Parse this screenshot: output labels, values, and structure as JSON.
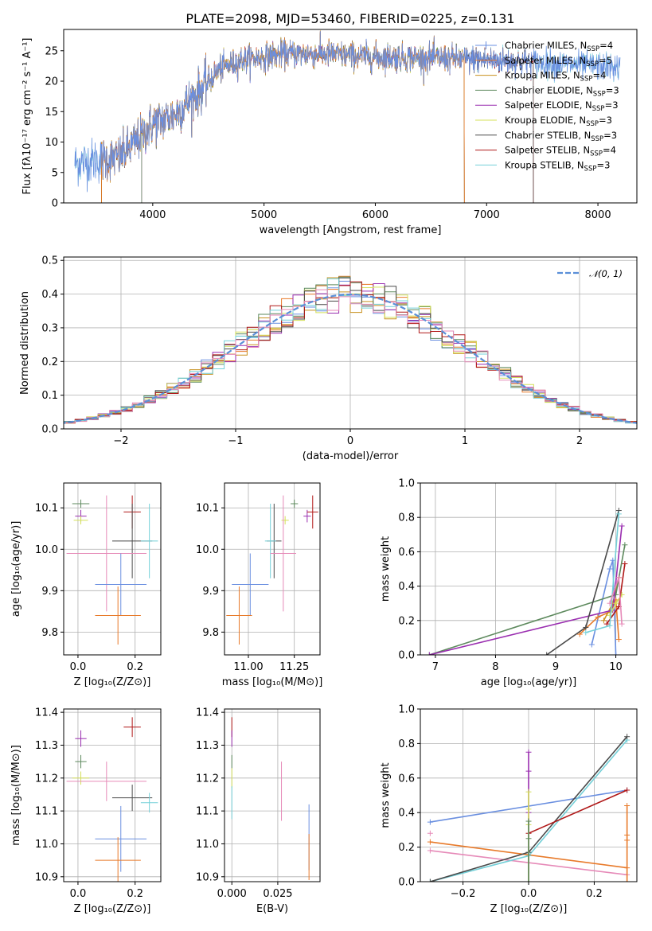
{
  "colors": {
    "chabrier_miles": "#6a8fe0",
    "salpeter_miles": "#e87a2a",
    "kroupa_miles": "#c8901e",
    "chabrier_elodie": "#5e8a5e",
    "salpeter_elodie": "#9a2eb0",
    "kroupa_elodie": "#d4e05a",
    "chabrier_stelib": "#4a4a4a",
    "salpeter_stelib": "#b01818",
    "kroupa_stelib": "#74d0d8",
    "pink": "#e68ab8",
    "gaussian": "#5a8fd8"
  },
  "chart_data": [
    {
      "id": "spectrum",
      "type": "line",
      "title": "PLATE=2098, MJD=53460, FIBERID=0225, z=0.131",
      "xlabel": "wavelength [Angstrom, rest frame]",
      "ylabel": "Flux [fλ10⁻¹⁷ erg cm⁻² s⁻¹ A⁻¹]",
      "xlim": [
        3200,
        8350
      ],
      "ylim": [
        0,
        28.5
      ],
      "xticks": [
        4000,
        5000,
        6000,
        7000,
        8000
      ],
      "yticks": [
        0,
        5,
        10,
        15,
        20,
        25
      ],
      "legend_position": "upper right",
      "grid": false,
      "continuum_points": [
        [
          3300,
          6.5
        ],
        [
          3500,
          7.0
        ],
        [
          3700,
          7.5
        ],
        [
          3850,
          10.0
        ],
        [
          4000,
          13.0
        ],
        [
          4200,
          14.5
        ],
        [
          4400,
          18.0
        ],
        [
          4600,
          22.0
        ],
        [
          4800,
          23.5
        ],
        [
          5000,
          24.0
        ],
        [
          5200,
          24.5
        ],
        [
          5500,
          24.5
        ],
        [
          6000,
          24.0
        ],
        [
          6500,
          23.8
        ],
        [
          7000,
          23.5
        ],
        [
          7500,
          23.0
        ],
        [
          8000,
          22.5
        ],
        [
          8200,
          22.2
        ]
      ],
      "series": [
        {
          "name": "Chabrier MILES, N<sub>SSP</sub>=4",
          "label_main": "Chabrier MILES, N",
          "label_sub": "SSP",
          "label_end": "=4",
          "color_key": "chabrier_miles",
          "marker": "+",
          "xmin": 3300,
          "xmax": 8200
        },
        {
          "name": "Salpeter MILES, N<sub>SSP</sub>=5",
          "label_main": "Salpeter MILES, N",
          "label_sub": "SSP",
          "label_end": "=5",
          "color_key": "salpeter_miles",
          "xmin": 3540,
          "xmax": 6800
        },
        {
          "name": "Kroupa MILES, N<sub>SSP</sub>=4",
          "label_main": "Kroupa MILES, N",
          "label_sub": "SSP",
          "label_end": "=4",
          "color_key": "kroupa_miles",
          "xmin": 3540,
          "xmax": 6800
        },
        {
          "name": "Chabrier ELODIE, N<sub>SSP</sub>=3",
          "label_main": "Chabrier ELODIE, N",
          "label_sub": "SSP",
          "label_end": "=3",
          "color_key": "chabrier_elodie",
          "xmin": 3900,
          "xmax": 6800
        },
        {
          "name": "Salpeter ELODIE, N<sub>SSP</sub>=3",
          "label_main": "Salpeter ELODIE, N",
          "label_sub": "SSP",
          "label_end": "=3",
          "color_key": "salpeter_elodie",
          "xmin": 3900,
          "xmax": 6800
        },
        {
          "name": "Kroupa ELODIE, N<sub>SSP</sub>=3",
          "label_main": "Kroupa ELODIE, N",
          "label_sub": "SSP",
          "label_end": "=3",
          "color_key": "kroupa_elodie",
          "xmin": 3900,
          "xmax": 6800
        },
        {
          "name": "Chabrier STELIB, N<sub>SSP</sub>=3",
          "label_main": "Chabrier STELIB, N",
          "label_sub": "SSP",
          "label_end": "=3",
          "color_key": "chabrier_stelib",
          "xmin": 3540,
          "xmax": 7420
        },
        {
          "name": "Salpeter STELIB, N<sub>SSP</sub>=4",
          "label_main": "Salpeter STELIB, N",
          "label_sub": "SSP",
          "label_end": "=4",
          "color_key": "salpeter_stelib",
          "xmin": 3540,
          "xmax": 7420
        },
        {
          "name": "Kroupa STELIB, N<sub>SSP</sub>=3",
          "label_main": "Kroupa STELIB, N",
          "label_sub": "SSP",
          "label_end": "=3",
          "color_key": "kroupa_stelib",
          "xmin": 3300,
          "xmax": 8200
        }
      ]
    },
    {
      "id": "residuals",
      "type": "bar",
      "xlabel": "(data-model)/error",
      "ylabel": "Normed distribution",
      "xlim": [
        -2.5,
        2.5
      ],
      "ylim": [
        0,
        0.51
      ],
      "xticks": [
        -2,
        -1,
        0,
        1,
        2
      ],
      "yticks": [
        0.0,
        0.1,
        0.2,
        0.3,
        0.4,
        0.5
      ],
      "grid": true,
      "legend_position": "upper right",
      "gaussian_label": "𝒩(0, 1)",
      "bin_width": 0.1
    },
    {
      "id": "age_vs_Z",
      "type": "scatter",
      "xlabel": "Z [log₁₀(Z/Z⊙)]",
      "ylabel": "age  [log₁₀(age/yr)]",
      "xlim": [
        -0.05,
        0.29
      ],
      "ylim": [
        9.745,
        10.16
      ],
      "xticks": [
        0.0,
        0.2
      ],
      "yticks": [
        9.8,
        9.9,
        10.0,
        10.1
      ],
      "grid": true,
      "points": [
        {
          "color_key": "chabrier_elodie",
          "x": 0.01,
          "xerr": 0.03,
          "y": 10.11,
          "yerr": 0.01
        },
        {
          "color_key": "salpeter_elodie",
          "x": 0.01,
          "xerr": 0.02,
          "y": 10.08,
          "yerr": 0.015
        },
        {
          "color_key": "kroupa_elodie",
          "x": 0.01,
          "xerr": 0.025,
          "y": 10.07,
          "yerr": 0.01
        },
        {
          "color_key": "salpeter_stelib",
          "x": 0.19,
          "xerr": 0.03,
          "y": 10.09,
          "yerr": 0.04
        },
        {
          "color_key": "chabrier_stelib",
          "x": 0.19,
          "xerr": 0.07,
          "y": 10.02,
          "yerr": 0.09
        },
        {
          "color_key": "kroupa_stelib",
          "x": 0.25,
          "xerr": 0.03,
          "y": 10.02,
          "yerr": 0.09
        },
        {
          "color_key": "pink",
          "x": 0.1,
          "xerr": 0.14,
          "y": 9.99,
          "yerr": 0.14
        },
        {
          "color_key": "chabrier_miles",
          "x": 0.15,
          "xerr": 0.09,
          "y": 9.915,
          "yerr": 0.075
        },
        {
          "color_key": "salpeter_miles",
          "x": 0.14,
          "xerr": 0.08,
          "y": 9.84,
          "yerr": 0.07
        }
      ]
    },
    {
      "id": "age_vs_mass",
      "type": "scatter",
      "xlabel": "mass [log₁₀(M/M⊙)]",
      "ylabel": "",
      "xlim": [
        10.87,
        11.39
      ],
      "ylim": [
        9.745,
        10.16
      ],
      "xticks": [
        11.0,
        11.25
      ],
      "xtick_labels": [
        "11.00",
        "11.25"
      ],
      "yticks": [
        9.8,
        9.9,
        10.0,
        10.1
      ],
      "grid": true,
      "points": [
        {
          "color_key": "chabrier_elodie",
          "x": 11.25,
          "xerr": 0.02,
          "y": 10.11,
          "yerr": 0.01
        },
        {
          "color_key": "salpeter_elodie",
          "x": 11.32,
          "xerr": 0.02,
          "y": 10.08,
          "yerr": 0.015
        },
        {
          "color_key": "kroupa_elodie",
          "x": 11.2,
          "xerr": 0.02,
          "y": 10.07,
          "yerr": 0.01
        },
        {
          "color_key": "salpeter_stelib",
          "x": 11.35,
          "xerr": 0.03,
          "y": 10.09,
          "yerr": 0.04
        },
        {
          "color_key": "chabrier_stelib",
          "x": 11.14,
          "xerr": 0.04,
          "y": 10.02,
          "yerr": 0.09
        },
        {
          "color_key": "kroupa_stelib",
          "x": 11.12,
          "xerr": 0.03,
          "y": 10.02,
          "yerr": 0.09
        },
        {
          "color_key": "pink",
          "x": 11.19,
          "xerr": 0.07,
          "y": 9.99,
          "yerr": 0.14
        },
        {
          "color_key": "chabrier_miles",
          "x": 11.01,
          "xerr": 0.1,
          "y": 9.915,
          "yerr": 0.075
        },
        {
          "color_key": "salpeter_miles",
          "x": 10.95,
          "xerr": 0.07,
          "y": 9.84,
          "yerr": 0.07
        }
      ]
    },
    {
      "id": "weight_vs_age",
      "type": "line",
      "xlabel": "age  [log₁₀(age/yr)]",
      "ylabel": "mass weight",
      "xlim": [
        6.75,
        10.35
      ],
      "ylim": [
        0,
        1.0
      ],
      "xticks": [
        7,
        8,
        9,
        10
      ],
      "yticks": [
        0.0,
        0.2,
        0.4,
        0.6,
        0.8,
        1.0
      ],
      "grid": true,
      "series": [
        {
          "color_key": "chabrier_miles",
          "x": [
            9.6,
            9.9,
            9.95,
            10.0
          ],
          "y": [
            0.06,
            0.5,
            0.55,
            0.0
          ]
        },
        {
          "color_key": "salpeter_miles",
          "x": [
            9.4,
            9.7,
            9.9,
            10.0,
            10.05
          ],
          "y": [
            0.12,
            0.22,
            0.25,
            0.32,
            0.09
          ]
        },
        {
          "color_key": "kroupa_miles",
          "x": [
            9.8,
            9.95,
            10.05
          ],
          "y": [
            0.2,
            0.3,
            0.45
          ]
        },
        {
          "color_key": "chabrier_elodie",
          "x": [
            6.9,
            10.0,
            10.15
          ],
          "y": [
            0.0,
            0.35,
            0.64
          ]
        },
        {
          "color_key": "salpeter_elodie",
          "x": [
            6.9,
            9.95,
            10.1
          ],
          "y": [
            0.0,
            0.26,
            0.75
          ]
        },
        {
          "color_key": "kroupa_elodie",
          "x": [
            9.9,
            10.0,
            10.1
          ],
          "y": [
            0.23,
            0.3,
            0.35
          ]
        },
        {
          "color_key": "chabrier_stelib",
          "x": [
            8.85,
            9.5,
            10.05
          ],
          "y": [
            0.0,
            0.16,
            0.84
          ]
        },
        {
          "color_key": "salpeter_stelib",
          "x": [
            9.85,
            10.05,
            10.15
          ],
          "y": [
            0.18,
            0.28,
            0.53
          ]
        },
        {
          "color_key": "kroupa_stelib",
          "x": [
            9.5,
            9.9,
            10.05
          ],
          "y": [
            0.13,
            0.17,
            0.82
          ]
        },
        {
          "color_key": "pink",
          "x": [
            9.9,
            10.05,
            10.1
          ],
          "y": [
            0.3,
            0.45,
            0.18
          ]
        }
      ]
    },
    {
      "id": "mass_vs_Z",
      "type": "scatter",
      "xlabel": "Z [log₁₀(Z/Z⊙)]",
      "ylabel": "mass [log₁₀(M/M⊙)]",
      "xlim": [
        -0.05,
        0.29
      ],
      "ylim": [
        10.885,
        11.41
      ],
      "xticks": [
        0.0,
        0.2
      ],
      "yticks": [
        10.9,
        11.0,
        11.1,
        11.2,
        11.3,
        11.4
      ],
      "grid": true,
      "points": [
        {
          "color_key": "salpeter_elodie",
          "x": 0.01,
          "xerr": 0.02,
          "y": 11.32,
          "yerr": 0.025
        },
        {
          "color_key": "salpeter_stelib",
          "x": 0.19,
          "xerr": 0.03,
          "y": 11.355,
          "yerr": 0.03
        },
        {
          "color_key": "chabrier_elodie",
          "x": 0.01,
          "xerr": 0.02,
          "y": 11.25,
          "yerr": 0.02
        },
        {
          "color_key": "kroupa_elodie",
          "x": 0.01,
          "xerr": 0.03,
          "y": 11.2,
          "yerr": 0.02
        },
        {
          "color_key": "pink",
          "x": 0.1,
          "xerr": 0.14,
          "y": 11.19,
          "yerr": 0.06
        },
        {
          "color_key": "chabrier_stelib",
          "x": 0.19,
          "xerr": 0.07,
          "y": 11.14,
          "yerr": 0.04
        },
        {
          "color_key": "kroupa_stelib",
          "x": 0.25,
          "xerr": 0.03,
          "y": 11.125,
          "yerr": 0.03
        },
        {
          "color_key": "chabrier_miles",
          "x": 0.15,
          "xerr": 0.09,
          "y": 11.015,
          "yerr": 0.1
        },
        {
          "color_key": "salpeter_miles",
          "x": 0.14,
          "xerr": 0.08,
          "y": 10.95,
          "yerr": 0.07
        }
      ]
    },
    {
      "id": "mass_vs_ebv",
      "type": "scatter",
      "xlabel": "E(B-V)",
      "ylabel": "",
      "xlim": [
        -0.004,
        0.048
      ],
      "ylim": [
        10.885,
        11.41
      ],
      "xticks": [
        0.0,
        0.025
      ],
      "xtick_labels": [
        "0.000",
        "0.025"
      ],
      "yticks": [
        10.9,
        11.0,
        11.1,
        11.2,
        11.3,
        11.4
      ],
      "grid": true,
      "points": [
        {
          "color_key": "salpeter_stelib",
          "x": 0.0,
          "xerr": 0,
          "y": 11.355,
          "yerr": 0.03
        },
        {
          "color_key": "salpeter_elodie",
          "x": 0.0,
          "xerr": 0,
          "y": 11.32,
          "yerr": 0.025
        },
        {
          "color_key": "chabrier_elodie",
          "x": 0.0,
          "xerr": 0,
          "y": 11.25,
          "yerr": 0.02
        },
        {
          "color_key": "kroupa_elodie",
          "x": 0.0,
          "xerr": 0,
          "y": 11.2,
          "yerr": 0.03
        },
        {
          "color_key": "kroupa_stelib",
          "x": 0.0,
          "xerr": 0,
          "y": 11.125,
          "yerr": 0.05
        },
        {
          "color_key": "pink",
          "x": 0.027,
          "xerr": 0,
          "y": 11.16,
          "yerr": 0.09
        },
        {
          "color_key": "chabrier_miles",
          "x": 0.042,
          "xerr": 0,
          "y": 11.02,
          "yerr": 0.1
        },
        {
          "color_key": "salpeter_miles",
          "x": 0.042,
          "xerr": 0,
          "y": 10.96,
          "yerr": 0.07
        }
      ]
    },
    {
      "id": "weight_vs_Z",
      "type": "line",
      "xlabel": "Z [log₁₀(Z/Z⊙)]",
      "ylabel": "mass weight",
      "xlim": [
        -0.33,
        0.33
      ],
      "ylim": [
        0,
        1.0
      ],
      "xticks": [
        -0.2,
        0.0,
        0.2
      ],
      "xtick_labels": [
        "−0.2",
        "0.0",
        "0.2"
      ],
      "yticks": [
        0.0,
        0.2,
        0.4,
        0.6,
        0.8,
        1.0
      ],
      "grid": true,
      "series": [
        {
          "color_key": "chabrier_miles",
          "x": [
            -0.3,
            0.3
          ],
          "y": [
            0.345,
            0.53
          ]
        },
        {
          "color_key": "salpeter_miles",
          "x": [
            -0.3,
            0.3
          ],
          "y": [
            0.23,
            0.08
          ]
        },
        {
          "color_key": "pink",
          "x": [
            -0.3,
            0.3
          ],
          "y": [
            0.18,
            0.04
          ]
        },
        {
          "color_key": "kroupa_stelib",
          "x": [
            -0.3,
            0.0,
            0.3
          ],
          "y": [
            0.0,
            0.15,
            0.82
          ]
        },
        {
          "color_key": "chabrier_stelib",
          "x": [
            -0.3,
            0.0,
            0.3
          ],
          "y": [
            0.0,
            0.17,
            0.84
          ]
        },
        {
          "color_key": "salpeter_stelib",
          "x": [
            0.0,
            0.3
          ],
          "y": [
            0.28,
            0.53
          ]
        }
      ],
      "markers": [
        {
          "color_key": "salpeter_elodie",
          "x": 0.0,
          "y": [
            0.75,
            0.64,
            0.4
          ]
        },
        {
          "color_key": "kroupa_elodie",
          "x": 0.0,
          "y": [
            0.52,
            0.42,
            0.33
          ]
        },
        {
          "color_key": "chabrier_elodie",
          "x": 0.0,
          "y": [
            0.35,
            0.25
          ]
        },
        {
          "color_key": "salpeter_miles",
          "x": 0.3,
          "y": [
            0.44,
            0.27,
            0.24
          ]
        },
        {
          "color_key": "pink",
          "x": -0.3,
          "y": [
            0.28
          ]
        }
      ]
    }
  ]
}
